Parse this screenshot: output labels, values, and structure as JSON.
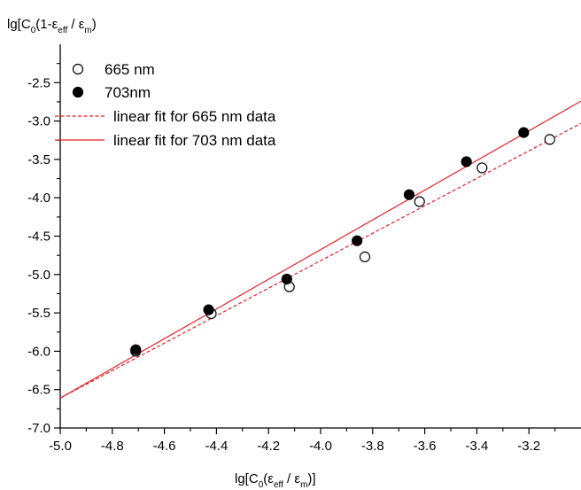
{
  "chart_data": {
    "type": "scatter",
    "title": "",
    "xlabel": {
      "main": "lg[C",
      "sub0": "0",
      "mid": "(ε",
      "sub1": "eff",
      "mid2": " / ε",
      "sub2": "m",
      "end": ")]"
    },
    "ylabel": {
      "main": "lg[C",
      "sub0": "0",
      "mid": "(1-ε",
      "sub1": "eff",
      "mid2": " / ε",
      "sub2": "m",
      "end": ")"
    },
    "xlim": [
      -5.0,
      -3.0
    ],
    "ylim": [
      -7.0,
      -2.0
    ],
    "xticks": [
      -5.0,
      -4.8,
      -4.6,
      -4.4,
      -4.2,
      -4.0,
      -3.8,
      -3.6,
      -3.4,
      -3.2
    ],
    "xtick_labels": [
      "-5.0",
      "-4.8",
      "-4.6",
      "-4.4",
      "-4.2",
      "-4.0",
      "-3.8",
      "-3.6",
      "-3.4",
      "-3.2"
    ],
    "yticks": [
      -7.0,
      -6.5,
      -6.0,
      -5.5,
      -5.0,
      -4.5,
      -4.0,
      -3.5,
      -3.0,
      -2.5
    ],
    "ytick_labels": [
      "-7.0",
      "-6.5",
      "-6.0",
      "-5.5",
      "-5.0",
      "-4.5",
      "-4.0",
      "-3.5",
      "-3.0",
      "-2.5"
    ],
    "legend_position": "top-left",
    "series": [
      {
        "name": "665 nm",
        "marker": "open-circle",
        "color": "#000000",
        "x": [
          -4.71,
          -4.42,
          -4.12,
          -3.83,
          -3.62,
          -3.38,
          -3.12
        ],
        "y": [
          -6.0,
          -5.51,
          -5.16,
          -4.77,
          -4.05,
          -3.61,
          -3.24
        ]
      },
      {
        "name": "703nm",
        "marker": "filled-circle",
        "color": "#000000",
        "x": [
          -4.71,
          -4.43,
          -4.13,
          -3.86,
          -3.66,
          -3.44,
          -3.22
        ],
        "y": [
          -5.98,
          -5.46,
          -5.06,
          -4.56,
          -3.96,
          -3.53,
          -3.15
        ]
      }
    ],
    "fits": [
      {
        "name": "linear fit for 665 nm data",
        "style": "dashed",
        "color": "#e8202a",
        "x": [
          -5.0,
          -3.0
        ],
        "y": [
          -6.61,
          -3.03
        ]
      },
      {
        "name": "linear fit for 703 nm data",
        "style": "solid",
        "color": "#e8202a",
        "x": [
          -5.0,
          -3.0
        ],
        "y": [
          -6.61,
          -2.74
        ]
      }
    ]
  }
}
